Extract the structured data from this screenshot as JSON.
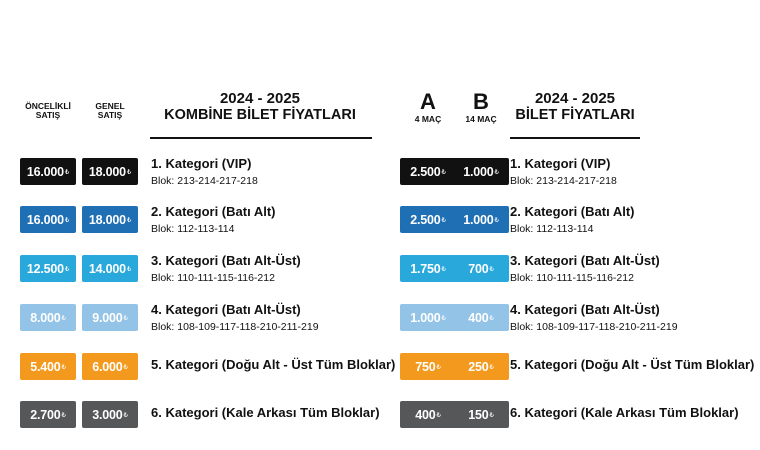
{
  "currency": "₺",
  "left": {
    "col_a_label": [
      "ÖNCELİKLİ",
      "SATIŞ"
    ],
    "col_b_label": [
      "GENEL",
      "SATIŞ"
    ],
    "title": [
      "2024 - 2025",
      "KOMBİNE BİLET FİYATLARI"
    ],
    "rows": [
      {
        "a": "16.000",
        "b": "18.000",
        "category": "1. Kategori (VIP)",
        "blocks": "Blok: 213-214-217-218"
      },
      {
        "a": "16.000",
        "b": "18.000",
        "category": "2. Kategori (Batı Alt)",
        "blocks": "Blok: 112-113-114"
      },
      {
        "a": "12.500",
        "b": "14.000",
        "category": "3. Kategori (Batı Alt-Üst)",
        "blocks": "Blok: 110-111-115-116-212"
      },
      {
        "a": "8.000",
        "b": "9.000",
        "category": "4. Kategori (Batı Alt-Üst)",
        "blocks": "Blok: 108-109-117-118-210-211-219"
      },
      {
        "a": "5.400",
        "b": "6.000",
        "category": "5. Kategori (Doğu Alt - Üst Tüm Bloklar)",
        "blocks": ""
      },
      {
        "a": "2.700",
        "b": "3.000",
        "category": "6. Kategori (Kale Arkası Tüm Bloklar)",
        "blocks": ""
      }
    ]
  },
  "right": {
    "col_a_label": [
      "A",
      "4 MAÇ"
    ],
    "col_b_label": [
      "B",
      "14 MAÇ"
    ],
    "title": [
      "2024 - 2025",
      "BİLET FİYATLARI"
    ],
    "rows": [
      {
        "a": "2.500",
        "b": "1.000",
        "category": "1. Kategori (VIP)",
        "blocks": "Blok: 213-214-217-218"
      },
      {
        "a": "2.500",
        "b": "1.000",
        "category": "2. Kategori (Batı Alt)",
        "blocks": "Blok: 112-113-114"
      },
      {
        "a": "1.750",
        "b": "700",
        "category": "3. Kategori (Batı Alt-Üst)",
        "blocks": "Blok: 110-111-115-116-212"
      },
      {
        "a": "1.000",
        "b": "400",
        "category": "4. Kategori (Batı Alt-Üst)",
        "blocks": "Blok: 108-109-117-118-210-211-219"
      },
      {
        "a": "750",
        "b": "250",
        "category": "5. Kategori (Doğu Alt - Üst Tüm Bloklar)",
        "blocks": ""
      },
      {
        "a": "400",
        "b": "150",
        "category": "6. Kategori (Kale Arkası Tüm Bloklar)",
        "blocks": ""
      }
    ]
  },
  "category_colors": [
    "#111111",
    "#1f6fb5",
    "#29a8dc",
    "#93c3e6",
    "#f39a1e",
    "#555759"
  ]
}
